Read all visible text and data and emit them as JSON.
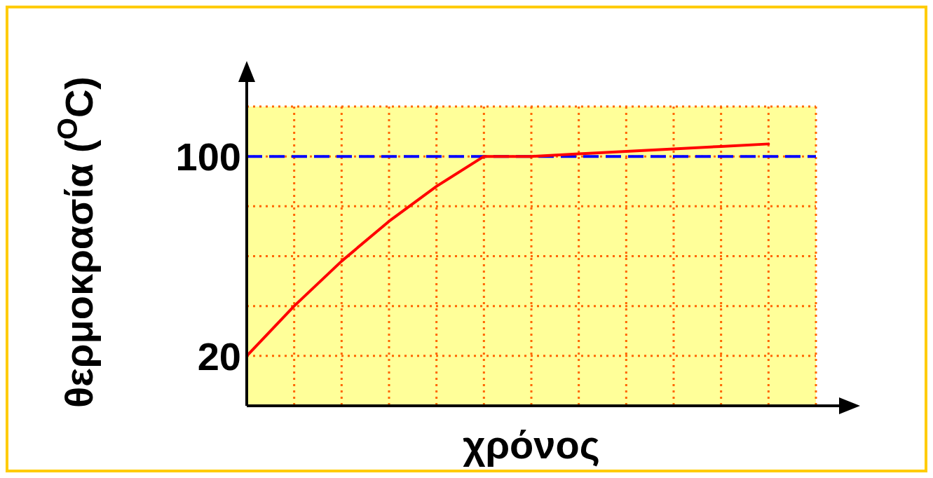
{
  "chart_data": {
    "type": "line",
    "xlabel": "χρόνος",
    "ylabel": "θερμοκρασία ($^{O}$C)",
    "categories": [
      null,
      null,
      null,
      null,
      null,
      null,
      null,
      null,
      null,
      null,
      null,
      null,
      null
    ],
    "series": [
      {
        "color": "#ff0000",
        "values": [
          20,
          40,
          58,
          74,
          88,
          100,
          100,
          101,
          102,
          103,
          104,
          105,
          null
        ]
      }
    ],
    "ylim": [
      0,
      120
    ],
    "yticks": [
      20,
      {
        "value": 40,
        "label": null
      },
      {
        "value": 60,
        "label": null
      },
      {
        "value": 80,
        "label": null
      },
      100,
      {
        "value": 120,
        "label": null
      }
    ],
    "ref_lines": [
      {
        "axis": "y",
        "value": 100,
        "color": "#0000ff",
        "line_style": "dashed"
      }
    ],
    "grid": true,
    "marker": "none",
    "line_style": "solid"
  }
}
